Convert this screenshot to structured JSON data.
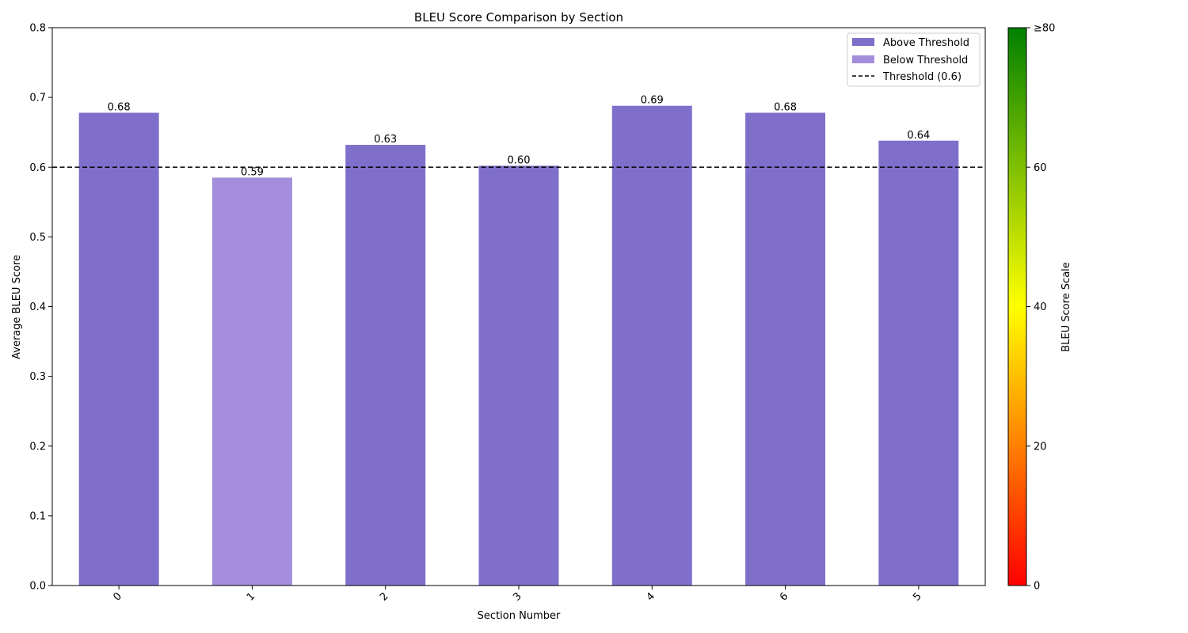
{
  "chart_data": {
    "type": "bar",
    "title": "BLEU Score Comparison by Section",
    "xlabel": "Section Number",
    "ylabel": "Average BLEU Score",
    "categories": [
      "0",
      "1",
      "2",
      "3",
      "4",
      "6",
      "5"
    ],
    "values": [
      0.678,
      0.585,
      0.632,
      0.602,
      0.688,
      0.678,
      0.638
    ],
    "data_labels": [
      "0.68",
      "0.59",
      "0.63",
      "0.60",
      "0.69",
      "0.68",
      "0.64"
    ],
    "status": [
      "above",
      "below",
      "above",
      "above",
      "above",
      "above",
      "above"
    ],
    "ylim": [
      0,
      0.8
    ],
    "yticks": [
      "0.0",
      "0.1",
      "0.2",
      "0.3",
      "0.4",
      "0.5",
      "0.6",
      "0.7",
      "0.8"
    ],
    "threshold": {
      "value": 0.6,
      "label": "Threshold (0.6)"
    },
    "grid": false,
    "legend": {
      "placement": "top-right",
      "entries": [
        {
          "label": "Above Threshold",
          "kind": "bar",
          "color": "#7F6FCB"
        },
        {
          "label": "Below Threshold",
          "kind": "bar",
          "color": "#A48DDA"
        },
        {
          "label": "Threshold (0.6)",
          "kind": "dashed-line",
          "color": "#000000"
        }
      ]
    },
    "colors": {
      "above": "#7F6FCB",
      "below": "#A48DDA",
      "threshold": "#000000"
    },
    "colorbar": {
      "label": "BLEU Score Scale",
      "range": [
        0,
        80
      ],
      "ticks": [
        "0",
        "20",
        "40",
        "60",
        "≥80"
      ],
      "gradient": [
        "#FF0000",
        "#FFFF00",
        "#008000"
      ]
    }
  }
}
